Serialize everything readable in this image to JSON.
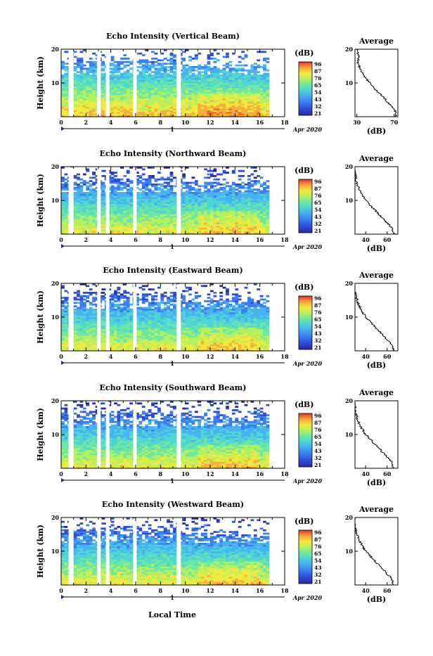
{
  "footer": {
    "xlabel": "Local Time"
  },
  "colorbar": {
    "unit": "(dB)",
    "ticks": [
      "96",
      "87",
      "76",
      "65",
      "54",
      "43",
      "32",
      "21"
    ]
  },
  "palette": [
    "#2a2a9e",
    "#2f4cd6",
    "#3a7ff0",
    "#47b3f0",
    "#4fd6d2",
    "#6ee8a0",
    "#b4f060",
    "#f0ea40",
    "#f4b03a",
    "#f06a30",
    "#e02a2a"
  ],
  "chart_data": [
    {
      "type": "heatmap",
      "title": "Echo Intensity (Vertical Beam)",
      "ylabel": "Height (km)",
      "xlabel": "",
      "xticks": [
        "0",
        "2",
        "4",
        "6",
        "8",
        "10",
        "12",
        "14",
        "16",
        "18"
      ],
      "yticks": [
        "20",
        "10"
      ],
      "xlim": [
        0,
        18
      ],
      "ylim": [
        0,
        20
      ],
      "date_label": "Apr 2020",
      "day_marker": "1",
      "profile": {
        "title": "Average",
        "xlabel": "(dB)",
        "xticks": [
          "30",
          "70"
        ],
        "yticks": [
          "20",
          "10"
        ],
        "height_km": [
          0,
          2,
          4,
          6,
          8,
          10,
          12,
          14,
          16,
          18,
          20
        ],
        "db": [
          72,
          71,
          64,
          58,
          50,
          44,
          38,
          34,
          31,
          32,
          30
        ]
      }
    },
    {
      "type": "heatmap",
      "title": "Echo Intensity (Northward Beam)",
      "ylabel": "Height (km)",
      "xlabel": "",
      "xticks": [
        "0",
        "2",
        "4",
        "6",
        "8",
        "10",
        "12",
        "14",
        "16",
        "18"
      ],
      "yticks": [
        "20",
        "10"
      ],
      "xlim": [
        0,
        18
      ],
      "ylim": [
        0,
        20
      ],
      "date_label": "Apr 2020",
      "day_marker": "1",
      "profile": {
        "title": "Average",
        "xlabel": "(dB)",
        "xticks": [
          "40",
          "60"
        ],
        "yticks": [
          "20",
          "10"
        ],
        "height_km": [
          0,
          2,
          4,
          6,
          8,
          10,
          12,
          14,
          16,
          18,
          20
        ],
        "db": [
          66,
          64,
          58,
          52,
          46,
          40,
          36,
          33,
          31,
          30,
          29
        ]
      }
    },
    {
      "type": "heatmap",
      "title": "Echo Intensity (Eastward Beam)",
      "ylabel": "Height (km)",
      "xlabel": "",
      "xticks": [
        "0",
        "2",
        "4",
        "6",
        "8",
        "10",
        "12",
        "14",
        "16",
        "18"
      ],
      "yticks": [
        "20",
        "10"
      ],
      "xlim": [
        0,
        18
      ],
      "ylim": [
        0,
        20
      ],
      "date_label": "Apr 2020",
      "day_marker": "1",
      "profile": {
        "title": "Average",
        "xlabel": "(dB)",
        "xticks": [
          "40",
          "60"
        ],
        "yticks": [
          "20",
          "10"
        ],
        "height_km": [
          0,
          2,
          4,
          6,
          8,
          10,
          12,
          14,
          16,
          18,
          20
        ],
        "db": [
          66,
          64,
          58,
          52,
          46,
          40,
          36,
          33,
          31,
          30,
          29
        ]
      }
    },
    {
      "type": "heatmap",
      "title": "Echo Intensity (Southward Beam)",
      "ylabel": "Height (km)",
      "xlabel": "",
      "xticks": [
        "0",
        "2",
        "4",
        "6",
        "8",
        "10",
        "12",
        "14",
        "16",
        "18"
      ],
      "yticks": [
        "20",
        "10"
      ],
      "xlim": [
        0,
        18
      ],
      "ylim": [
        0,
        20
      ],
      "date_label": "Apr 2020",
      "day_marker": "1",
      "profile": {
        "title": "Average",
        "xlabel": "(dB)",
        "xticks": [
          "40",
          "60"
        ],
        "yticks": [
          "20",
          "10"
        ],
        "height_km": [
          0,
          2,
          4,
          6,
          8,
          10,
          12,
          14,
          16,
          18,
          20
        ],
        "db": [
          66,
          64,
          58,
          52,
          46,
          40,
          36,
          33,
          31,
          30,
          29
        ]
      }
    },
    {
      "type": "heatmap",
      "title": "Echo Intensity (Westward Beam)",
      "ylabel": "Height (km)",
      "xlabel": "Local Time",
      "xticks": [
        "0",
        "2",
        "4",
        "6",
        "8",
        "10",
        "12",
        "14",
        "16",
        "18"
      ],
      "yticks": [
        "20",
        "10"
      ],
      "xlim": [
        0,
        18
      ],
      "ylim": [
        0,
        20
      ],
      "date_label": "Apr 2020",
      "day_marker": "1",
      "profile": {
        "title": "Average",
        "xlabel": "(dB)",
        "xticks": [
          "40",
          "60"
        ],
        "yticks": [
          "20",
          "10"
        ],
        "height_km": [
          0,
          2,
          4,
          6,
          8,
          10,
          12,
          14,
          16,
          18,
          20
        ],
        "db": [
          66,
          64,
          58,
          52,
          46,
          40,
          36,
          33,
          31,
          30,
          29
        ]
      }
    }
  ]
}
